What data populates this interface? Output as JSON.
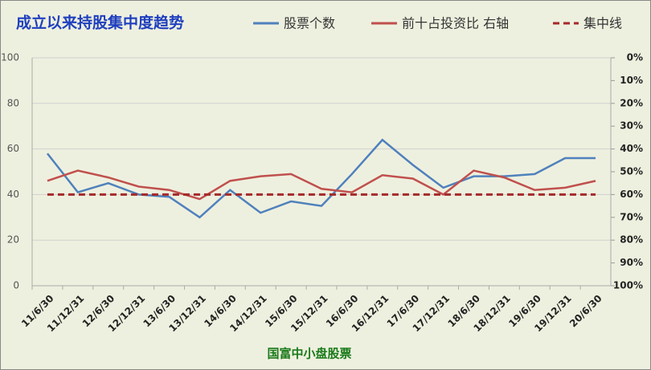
{
  "chart_data": {
    "type": "line",
    "title": "成立以来持股集中度趋势",
    "footer": "国富中小盘股票",
    "categories": [
      "11/6/30",
      "11/12/31",
      "12/6/30",
      "12/12/31",
      "13/6/30",
      "13/12/31",
      "14/6/30",
      "14/12/31",
      "15/6/30",
      "15/12/31",
      "16/6/30",
      "16/12/31",
      "17/6/30",
      "17/12/31",
      "18/6/30",
      "18/12/31",
      "19/6/30",
      "19/12/31",
      "20/6/30"
    ],
    "series": [
      {
        "name": "股票个数",
        "color": "#4f81bd",
        "values": [
          58,
          41,
          45,
          40,
          39,
          30,
          42,
          32,
          37,
          35,
          49,
          64,
          53,
          43,
          48,
          48,
          49,
          56,
          56
        ]
      },
      {
        "name": "前十占投资比 右轴",
        "color": "#c0504d",
        "axis": "y2",
        "values": [
          54,
          49.5,
          52.5,
          56.5,
          58,
          62,
          54,
          52,
          51,
          57.5,
          59,
          51.5,
          53,
          60,
          49.5,
          52.5,
          58,
          57,
          54
        ]
      },
      {
        "name": "集中线",
        "color": "#a52a2a",
        "dashed": true,
        "values": [
          40,
          40,
          40,
          40,
          40,
          40,
          40,
          40,
          40,
          40,
          40,
          40,
          40,
          40,
          40,
          40,
          40,
          40,
          40
        ]
      }
    ],
    "ylim": [
      0,
      100
    ],
    "yticks": [
      0,
      20,
      40,
      60,
      80,
      100
    ],
    "y2lim": [
      100,
      0
    ],
    "y2ticks": [
      {
        "value": 0,
        "label": "0%"
      },
      {
        "value": 10,
        "label": "10%"
      },
      {
        "value": 20,
        "label": "20%"
      },
      {
        "value": 30,
        "label": "30%"
      },
      {
        "value": 40,
        "label": "40%"
      },
      {
        "value": 50,
        "label": "50%"
      },
      {
        "value": 60,
        "label": "60%"
      },
      {
        "value": 70,
        "label": "70%"
      },
      {
        "value": 80,
        "label": "80%"
      },
      {
        "value": 90,
        "label": "90%"
      },
      {
        "value": 100,
        "label": "100%"
      }
    ],
    "grid": true
  }
}
